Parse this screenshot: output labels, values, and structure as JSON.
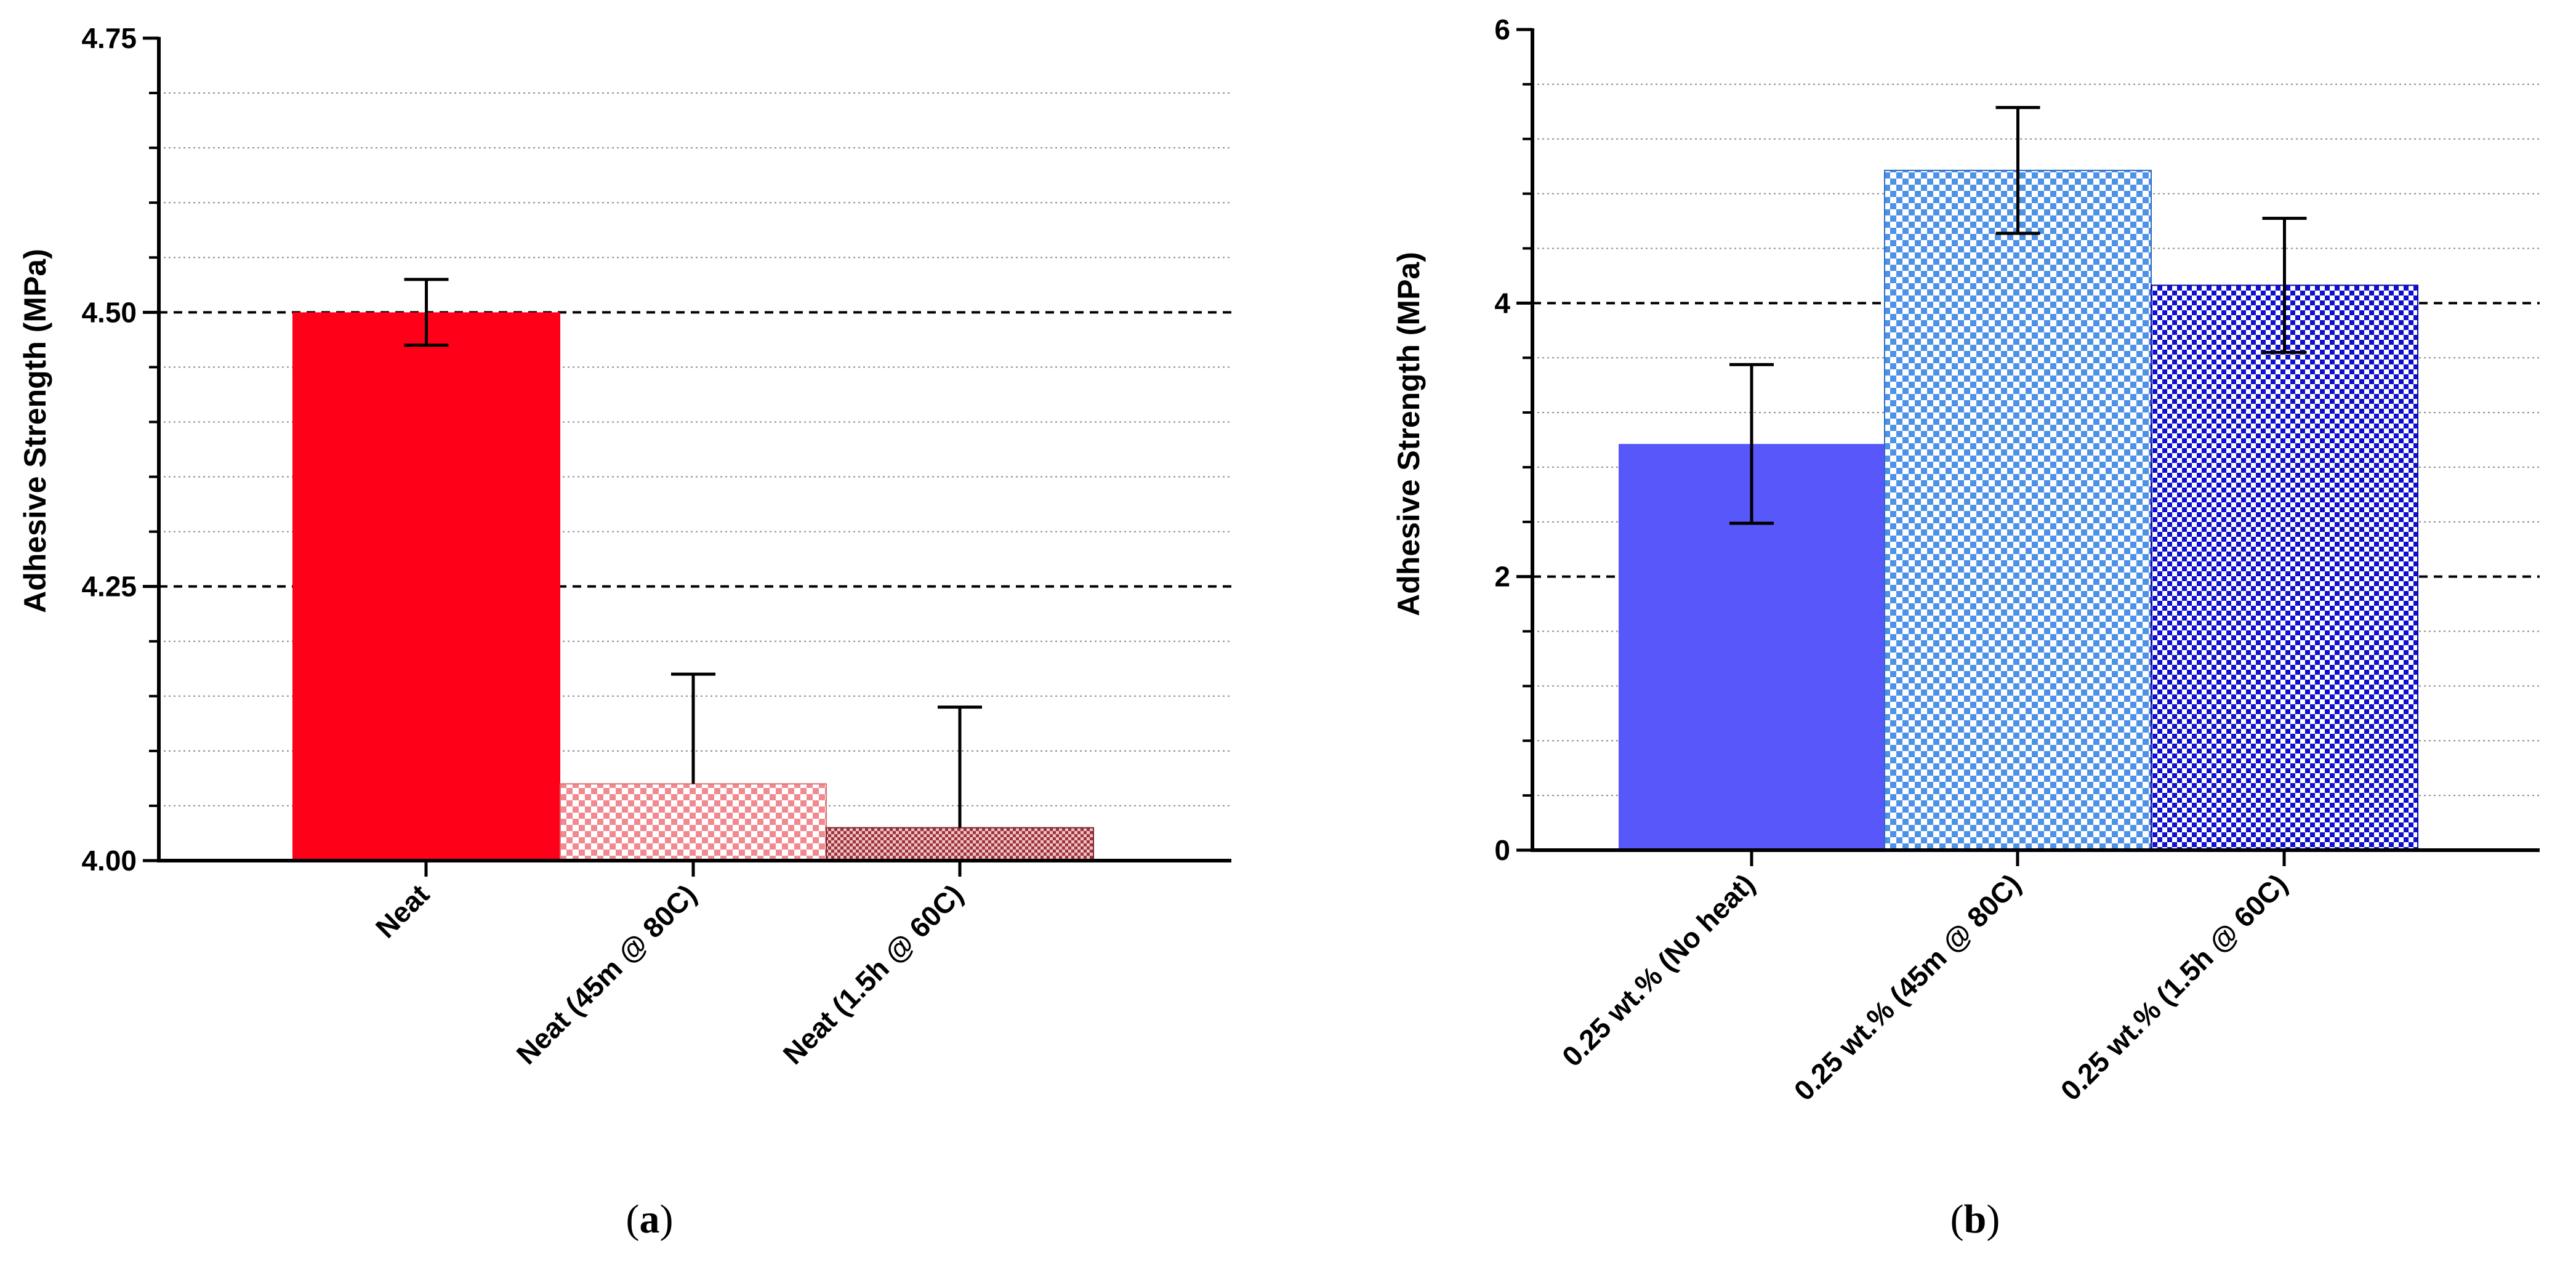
{
  "chart_data": [
    {
      "type": "bar",
      "panel": "a",
      "ylabel": "Adhesive Strength (MPa)",
      "xlabel": "",
      "ylim": [
        4.0,
        4.75
      ],
      "yticks": [
        4.0,
        4.25,
        4.5,
        4.75
      ],
      "ytick_labels": [
        "4.00",
        "4.25",
        "4.50",
        "4.75"
      ],
      "minor_tick_step": 0.05,
      "major_gridlines": [
        4.25,
        4.5
      ],
      "categories": [
        "Neat",
        "Neat (45m @ 80C)",
        "Neat (1.5h @ 60C)"
      ],
      "values": [
        4.5,
        4.07,
        4.03
      ],
      "error": [
        0.03,
        0.1,
        0.11
      ],
      "error_style": [
        "both",
        "up",
        "up"
      ],
      "fills": [
        "solid",
        "checker-fine",
        "checker-dense"
      ],
      "colors": [
        "#ff0019",
        "#f7a3a7",
        "#c05258"
      ]
    },
    {
      "type": "bar",
      "panel": "b",
      "ylabel": "Adhesive Strength (MPa)",
      "xlabel": "",
      "ylim": [
        0,
        6
      ],
      "yticks": [
        0,
        2,
        4,
        6
      ],
      "ytick_labels": [
        "0",
        "2",
        "4",
        "6"
      ],
      "minor_tick_step": 0.4,
      "major_gridlines": [
        2,
        4
      ],
      "categories": [
        "0.25 wt.% (No heat)",
        "0.25 wt.% (45m @ 80C)",
        "0.25 wt.% (1.5h @ 60C)"
      ],
      "values": [
        2.97,
        4.97,
        4.13
      ],
      "error": [
        0.58,
        0.46,
        0.49
      ],
      "error_style": [
        "both",
        "both",
        "both"
      ],
      "fills": [
        "solid",
        "checker-fine",
        "checker-dense"
      ],
      "colors": [
        "#5757fa",
        "#7fb3f0",
        "#1d1dd6"
      ]
    }
  ],
  "panel_labels": {
    "a": {
      "open": "(",
      "letter": "a",
      "close": ")"
    },
    "b": {
      "open": "(",
      "letter": "b",
      "close": ")"
    }
  }
}
